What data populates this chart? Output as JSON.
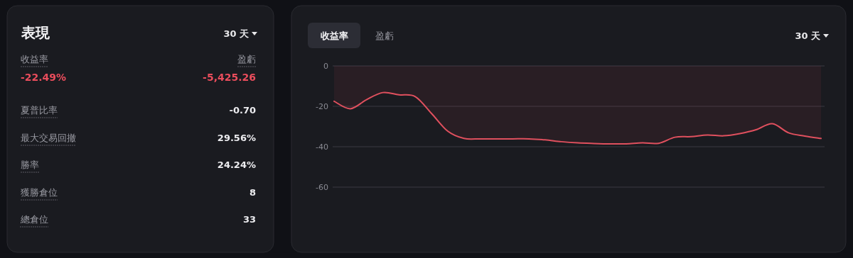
{
  "chart_data": [
    {
      "type": "other",
      "title": "表現",
      "annotations": [
        "30 天",
        "收益率",
        "盈虧",
        "-22.49%",
        "-5,425.26",
        "夏普比率",
        "-0.70",
        "最大交易回撤",
        "29.56%",
        "勝率",
        "24.24%",
        "獲勝倉位",
        "8",
        "總倉位",
        "33"
      ]
    },
    {
      "type": "area",
      "annotations": [
        "收益率",
        "盈虧",
        "30 天"
      ],
      "color": "#e0505e",
      "ylim": [
        -60,
        0
      ],
      "yticks": [
        0,
        -20,
        -40,
        -60
      ],
      "grid": "y",
      "categories": [
        null,
        null,
        null,
        null,
        null,
        null,
        null,
        null,
        null,
        null,
        null,
        null,
        null,
        null,
        null,
        null,
        null,
        null,
        null,
        null,
        null,
        null,
        null,
        null,
        null,
        null,
        null,
        null,
        null,
        null,
        null
      ],
      "values": [
        -17.5,
        -21.2,
        -16.7,
        -13.2,
        -14.3,
        -15.2,
        -23.5,
        -32.3,
        -35.9,
        -36.1,
        -36.1,
        -36.1,
        -36.1,
        -36.6,
        -37.5,
        -38.1,
        -38.4,
        -38.6,
        -38.6,
        -38.1,
        -38.3,
        -35.3,
        -35.0,
        -34.2,
        -34.6,
        -33.5,
        -31.6,
        -28.6,
        -33.1,
        -34.7,
        -35.9
      ]
    }
  ]
}
